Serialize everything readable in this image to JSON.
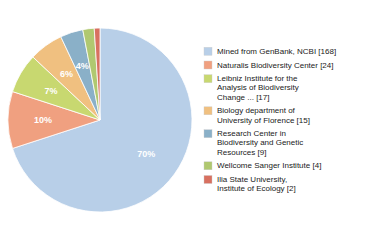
{
  "chart_data": {
    "type": "pie",
    "categories": [
      "Mined from GenBank, NCBI [168]",
      "Naturalis Biodiversity Center [24]",
      "Leibniz Institute for the\nAnalysis of Biodiversity\nChange ... [17]",
      "Biology department of\nUniversity of Florence [15]",
      "Research Center in\nBiodiversity and Genetic\nResources [9]",
      "Wellcome Sanger Institute [4]",
      "Ilia State University,\nInstitute of Ecology [2]"
    ],
    "values": [
      70,
      10,
      7,
      6,
      4,
      2,
      1
    ],
    "value_labels": [
      "70%",
      "10%",
      "7%",
      "6%",
      "4%",
      null,
      null
    ],
    "colors": [
      "#b8cfe8",
      "#f0a080",
      "#c8d870",
      "#f0c080",
      "#8ab0c8",
      "#b0c870",
      "#d87060"
    ],
    "data_labels": true,
    "legend": "right"
  }
}
